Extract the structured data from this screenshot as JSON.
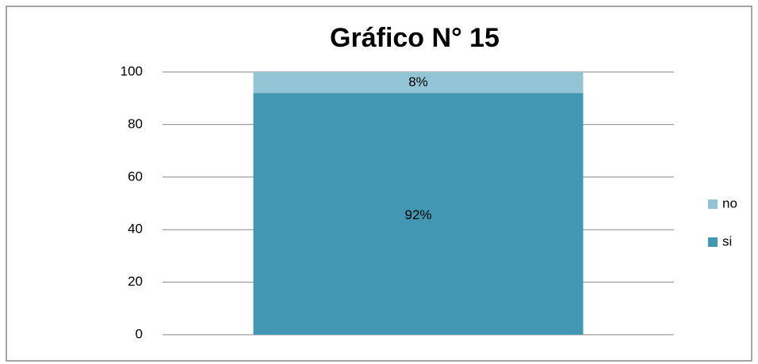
{
  "chart_data": {
    "type": "bar",
    "stacked": true,
    "title": "Gráfico N° 15",
    "categories": [
      null
    ],
    "series": [
      {
        "name": "si",
        "color": "#4298b2",
        "values": [
          92
        ],
        "value_labels": [
          "92%"
        ]
      },
      {
        "name": "no",
        "color": "#93c4d6",
        "values": [
          8
        ],
        "value_labels": [
          "8%"
        ]
      }
    ],
    "ylim": [
      0,
      100
    ],
    "yticks": [
      0,
      20,
      40,
      60,
      80,
      100
    ],
    "grid": true,
    "legend": "right"
  }
}
